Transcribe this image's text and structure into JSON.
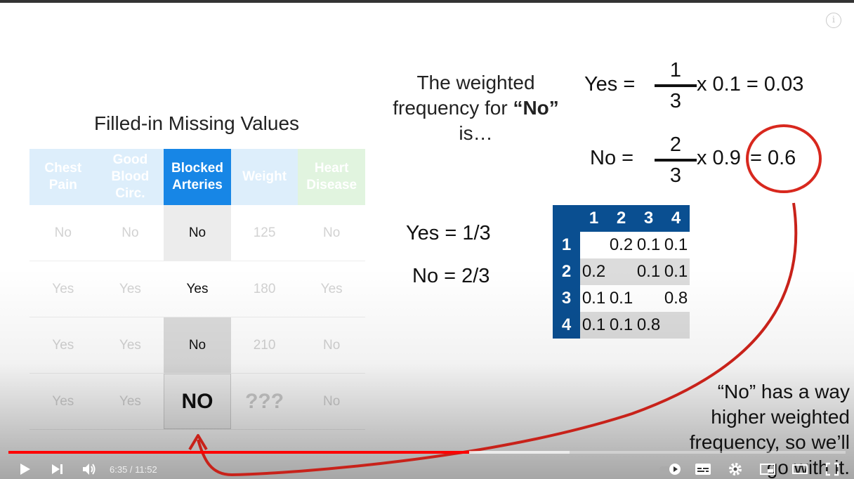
{
  "slide": {
    "title": "Filled-in Missing Values",
    "table": {
      "headers": [
        "Chest Pain",
        "Good Blood Circ.",
        "Blocked Arteries",
        "Weight",
        "Heart Disease"
      ],
      "rows": [
        [
          "No",
          "No",
          "No",
          "125",
          "No"
        ],
        [
          "Yes",
          "Yes",
          "Yes",
          "180",
          "Yes"
        ],
        [
          "Yes",
          "Yes",
          "No",
          "210",
          "No"
        ],
        [
          "Yes",
          "Yes",
          "NO",
          "???",
          "No"
        ]
      ]
    },
    "weighted_text": [
      "The weighted",
      "frequency for",
      "“No”",
      "is…"
    ],
    "yes_eq": {
      "lhs": "Yes =",
      "num": "1",
      "den": "3",
      "rhs": "x 0.1 = 0.03"
    },
    "no_eq": {
      "lhs": "No =",
      "num": "2",
      "den": "3",
      "rhs_a": "x 0.9",
      "rhs_b": "= 0.6"
    },
    "yes_frac": "Yes = 1/3",
    "no_frac": "No = 2/3",
    "matrix": {
      "col_headers": [
        "1",
        "2",
        "3",
        "4"
      ],
      "rows": [
        {
          "label": "1",
          "cells": [
            "",
            "0.2",
            "0.1",
            "0.1"
          ]
        },
        {
          "label": "2",
          "cells": [
            "0.2",
            "",
            "0.1",
            "0.1"
          ]
        },
        {
          "label": "3",
          "cells": [
            "0.1",
            "0.1",
            "",
            "0.8"
          ]
        },
        {
          "label": "4",
          "cells": [
            "0.1",
            "0.1",
            "0.8",
            ""
          ]
        }
      ]
    },
    "note": [
      "“No” has a way",
      "higher weighted",
      "frequency, so we’ll",
      "go with it."
    ]
  },
  "player": {
    "time_current": "6:35",
    "time_sep": " / ",
    "time_total": "11:52",
    "progress_played": 0.55,
    "progress_buffered": 0.67,
    "accent_color": "#ff0000",
    "icons": [
      "info-icon",
      "play-icon",
      "next-icon",
      "volume-icon",
      "autoplay-toggle-icon",
      "subtitles-icon",
      "settings-icon",
      "miniplayer-icon",
      "theater-icon",
      "fullscreen-icon"
    ]
  }
}
